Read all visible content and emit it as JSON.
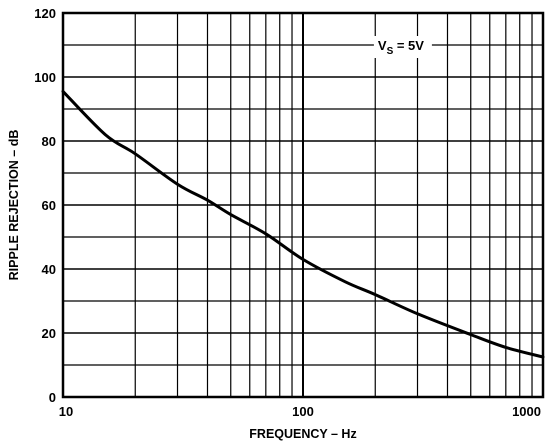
{
  "chart_data": {
    "type": "line",
    "xlabel": "FREQUENCY – Hz",
    "ylabel": "RIPPLE REJECTION – dB",
    "xscale": "log",
    "xlim": [
      10,
      1000
    ],
    "ylim": [
      0,
      120
    ],
    "grid": true,
    "x_ticks": [
      "10",
      "100",
      "1000"
    ],
    "y_ticks": [
      "0",
      "20",
      "40",
      "60",
      "80",
      "100",
      "120"
    ],
    "annotation": {
      "main": "V",
      "sub": "S",
      "rest": " = 5V"
    },
    "series": [
      {
        "x": [
          10,
          15,
          20,
          30,
          40,
          50,
          70,
          100,
          150,
          200,
          300,
          500,
          700,
          1000
        ],
        "y": [
          95.5,
          82,
          76,
          66.5,
          61.5,
          57,
          51,
          43,
          36,
          32,
          26,
          19.5,
          15.5,
          12.5
        ]
      }
    ]
  }
}
